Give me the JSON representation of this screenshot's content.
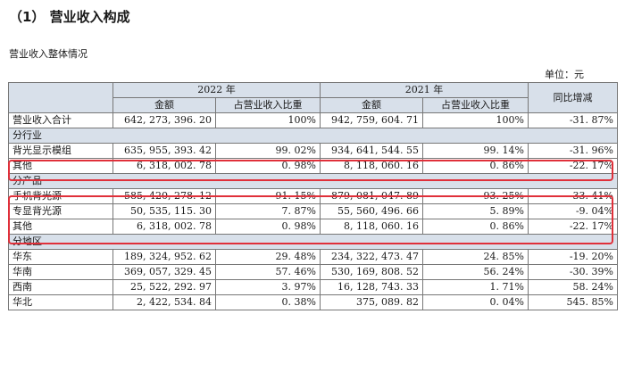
{
  "heading": "（1） 营业收入构成",
  "subheading": "营业收入整体情况",
  "unit_label": "单位：元",
  "header": {
    "year_2022": "2022 年",
    "year_2021": "2021 年",
    "yoy": "同比增减",
    "amount": "金额",
    "ratio": "占营业收入比重"
  },
  "total": {
    "label": "营业收入合计",
    "amt2022": "642, 273, 396. 20",
    "pct2022": "100%",
    "amt2021": "942, 759, 604. 71",
    "pct2021": "100%",
    "yoy": "-31. 87%"
  },
  "sections": {
    "industry": "分行业",
    "product": "分产品",
    "region": "分地区"
  },
  "rows": [
    {
      "label": "背光显示模组",
      "amt2022": "635, 955, 393. 42",
      "pct2022": "99. 02%",
      "amt2021": "934, 641, 544. 55",
      "pct2021": "99. 14%",
      "yoy": "-31. 96%"
    },
    {
      "label": "其他",
      "amt2022": "6, 318, 002. 78",
      "pct2022": "0. 98%",
      "amt2021": "8, 118, 060. 16",
      "pct2021": "0. 86%",
      "yoy": "-22. 17%"
    },
    {
      "label": "手机背光源",
      "amt2022": "585, 420, 278. 12",
      "pct2022": "91. 15%",
      "amt2021": "879, 081, 047. 89",
      "pct2021": "93. 25%",
      "yoy": "-33. 41%"
    },
    {
      "label": "专显背光源",
      "amt2022": "50, 535, 115. 30",
      "pct2022": "7. 87%",
      "amt2021": "55, 560, 496. 66",
      "pct2021": "5. 89%",
      "yoy": "-9. 04%"
    },
    {
      "label": "其他",
      "amt2022": "6, 318, 002. 78",
      "pct2022": "0. 98%",
      "amt2021": "8, 118, 060. 16",
      "pct2021": "0. 86%",
      "yoy": "-22. 17%"
    },
    {
      "label": "华东",
      "amt2022": "189, 324, 952. 62",
      "pct2022": "29. 48%",
      "amt2021": "234, 322, 473. 47",
      "pct2021": "24. 85%",
      "yoy": "-19. 20%"
    },
    {
      "label": "华南",
      "amt2022": "369, 057, 329. 45",
      "pct2022": "57. 46%",
      "amt2021": "530, 169, 808. 52",
      "pct2021": "56. 24%",
      "yoy": "-30. 39%"
    },
    {
      "label": "西南",
      "amt2022": "25, 522, 292. 97",
      "pct2022": "3. 97%",
      "amt2021": "16, 128, 743. 33",
      "pct2021": "1. 71%",
      "yoy": "58. 24%"
    },
    {
      "label": "华北",
      "amt2022": "2, 422, 534. 84",
      "pct2022": "0. 38%",
      "amt2021": "375, 089. 82",
      "pct2021": "0. 04%",
      "yoy": "545. 85%"
    }
  ],
  "highlight_color": "#e0303a"
}
